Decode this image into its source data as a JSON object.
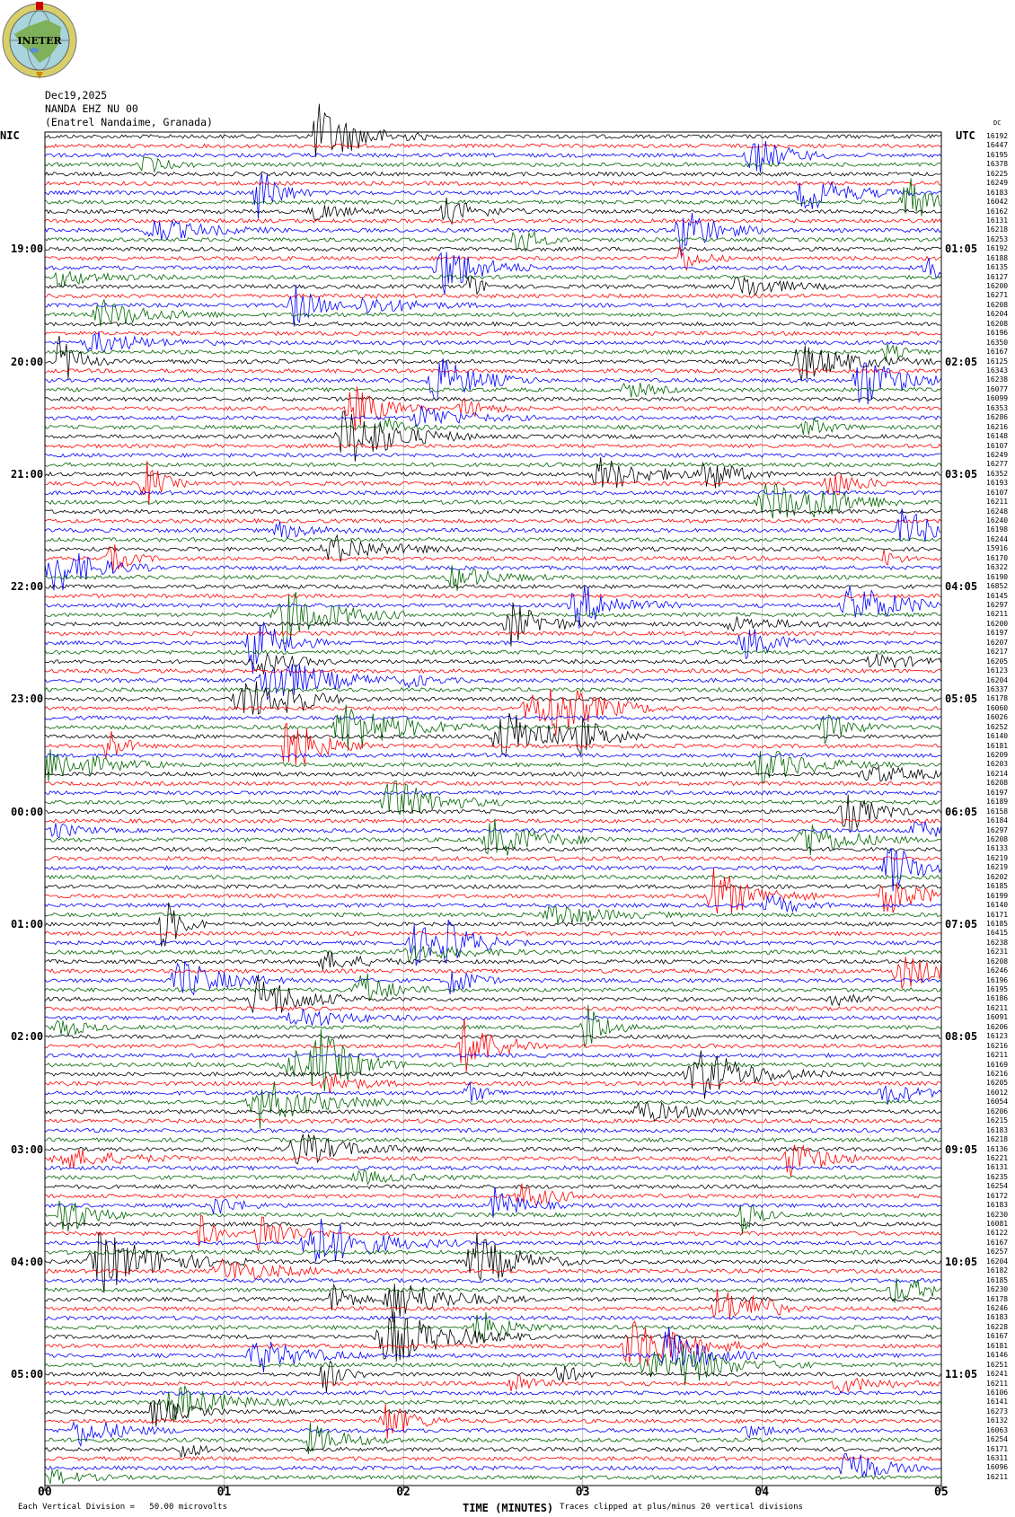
{
  "logo": {
    "text": "INETER",
    "colors": {
      "ring": "#d8cf6a",
      "globe": "#a8d4dc",
      "land": "#7fb05a",
      "lake": "#5a8fd0"
    }
  },
  "header": {
    "date": "Dec19,2025",
    "station": "NANDA EHZ NU 00",
    "location": "(Enatrel Nandaime, Granada)"
  },
  "left_axis": {
    "zone": "NIC",
    "hours": [
      "19:00",
      "20:00",
      "21:00",
      "22:00",
      "23:00",
      "00:00",
      "01:00",
      "02:00",
      "03:00",
      "04:00",
      "05:00"
    ]
  },
  "right_axis": {
    "zone": "UTC",
    "hours": [
      "01:05",
      "02:05",
      "03:05",
      "04:05",
      "05:05",
      "06:05",
      "07:05",
      "08:05",
      "09:05",
      "10:05",
      "11:05"
    ]
  },
  "chart_data": {
    "type": "line",
    "title": "",
    "xlabel": "TIME (MINUTES)",
    "x_ticks": [
      "00",
      "01",
      "02",
      "03",
      "04",
      "05"
    ],
    "xlim": [
      0,
      5
    ],
    "trace_colors": [
      "#000000",
      "#ff0000",
      "#0000ff",
      "#006400"
    ],
    "dc_label": "DC",
    "dc_offsets": [
      16192,
      16447,
      16195,
      16378,
      16225,
      16249,
      16183,
      16042,
      16162,
      16131,
      16218,
      16253,
      16192,
      16188,
      16135,
      16127,
      16200,
      16271,
      16208,
      16204,
      16208,
      16196,
      16350,
      16167,
      16125,
      16343,
      16238,
      16077,
      16099,
      16353,
      16286,
      16216,
      16148,
      16107,
      16249,
      16277,
      16352,
      16193,
      16107,
      16211,
      16248,
      16240,
      16198,
      16244,
      15916,
      16170,
      16322,
      16190,
      16852,
      16145,
      16297,
      16211,
      16200,
      16197,
      16207,
      16217,
      16205,
      16123,
      16204,
      16337,
      16178,
      16060,
      16026,
      16252,
      16140,
      16181,
      16209,
      16203,
      16214,
      16208,
      16197,
      16189,
      16158,
      16184,
      16297,
      16208,
      16133,
      16219,
      16219,
      16202,
      16185,
      16199,
      16140,
      16171,
      16185,
      16415,
      16238,
      16231,
      16208,
      16246,
      16196,
      16195,
      16186,
      16211,
      16091,
      16206,
      16123,
      16216,
      16211,
      16169,
      16216,
      16205,
      16012,
      16054,
      16206,
      16215,
      16183,
      16218,
      16136,
      16221,
      16131,
      16235,
      16254,
      16172,
      16183,
      16230,
      16081,
      16122,
      16167,
      16257,
      16204,
      16182,
      16185,
      16230,
      16178,
      16246,
      16183,
      16228,
      16167,
      16181,
      16146,
      16251,
      16241,
      16211,
      16106,
      16141,
      16273,
      16132,
      16063,
      16254,
      16171,
      16311,
      16096,
      16211
    ]
  },
  "footer": {
    "scale_note": "Each Vertical Division =   50.00 microvolts",
    "clip_note": "Traces clipped at plus/minus 20 vertical divisions"
  }
}
